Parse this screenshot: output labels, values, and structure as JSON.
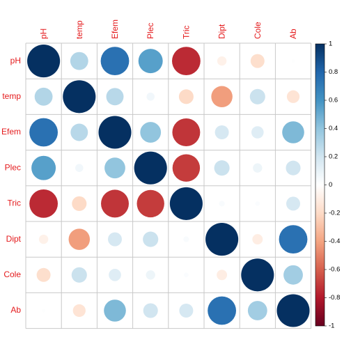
{
  "chart_data": {
    "type": "heatmap",
    "subtype": "correlation-circle-matrix",
    "variables": [
      "pH",
      "temp",
      "Efem",
      "Plec",
      "Tric",
      "Dipt",
      "Cole",
      "Ab"
    ],
    "matrix": [
      [
        1.0,
        0.3,
        0.75,
        0.55,
        -0.75,
        -0.08,
        -0.18,
        0.01
      ],
      [
        0.3,
        1.0,
        0.28,
        0.06,
        -0.2,
        -0.42,
        0.22,
        -0.15
      ],
      [
        0.75,
        0.28,
        1.0,
        0.4,
        -0.72,
        0.18,
        0.14,
        0.45
      ],
      [
        0.55,
        0.06,
        0.4,
        1.0,
        -0.7,
        0.22,
        0.08,
        0.2
      ],
      [
        -0.75,
        -0.2,
        -0.72,
        -0.7,
        1.0,
        0.03,
        0.02,
        0.18
      ],
      [
        -0.08,
        -0.42,
        0.18,
        0.22,
        0.03,
        1.0,
        -0.1,
        0.75
      ],
      [
        -0.18,
        0.22,
        0.14,
        0.08,
        0.02,
        -0.1,
        1.0,
        0.35
      ],
      [
        0.01,
        -0.15,
        0.45,
        0.2,
        0.18,
        0.75,
        0.35,
        1.0
      ]
    ],
    "color_scale": {
      "min": -1,
      "max": 1,
      "ticks": [
        "1",
        "0.8",
        "0.6",
        "0.4",
        "0.2",
        "0",
        "-0.2",
        "-0.4",
        "-0.6",
        "-0.8",
        "-1"
      ],
      "stops": [
        {
          "value": -1.0,
          "color": "#67001F"
        },
        {
          "value": -0.8,
          "color": "#B2182B"
        },
        {
          "value": -0.6,
          "color": "#D6604D"
        },
        {
          "value": -0.4,
          "color": "#F4A582"
        },
        {
          "value": -0.2,
          "color": "#FDDBC7"
        },
        {
          "value": 0.0,
          "color": "#FFFFFF"
        },
        {
          "value": 0.2,
          "color": "#D1E5F0"
        },
        {
          "value": 0.4,
          "color": "#92C5DE"
        },
        {
          "value": 0.6,
          "color": "#4393C3"
        },
        {
          "value": 0.8,
          "color": "#2166AC"
        },
        {
          "value": 1.0,
          "color": "#053061"
        }
      ]
    },
    "label_color": "#E41A1C",
    "grid_color": "#C8C8C8",
    "legend": "right",
    "grid": true
  }
}
